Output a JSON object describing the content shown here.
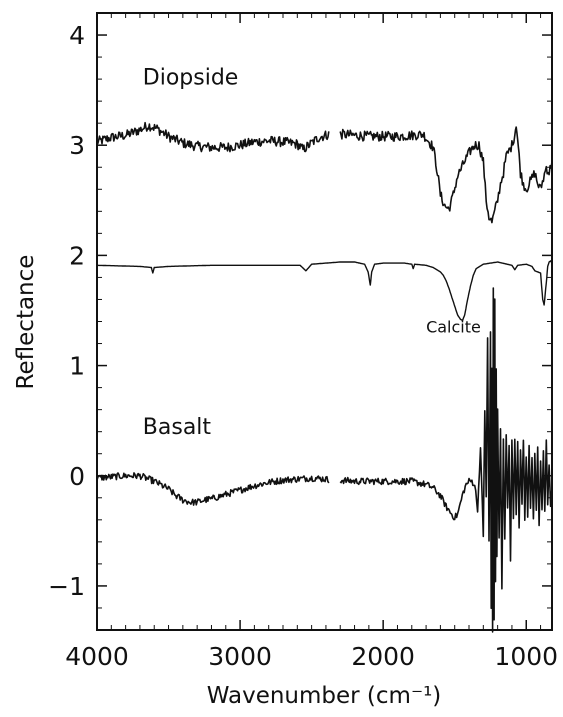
{
  "chart_data": {
    "type": "line",
    "title": "",
    "xlabel": "Wavenumber (cm⁻¹)",
    "ylabel": "Reflectance",
    "xlim": [
      4000,
      820
    ],
    "ylim": [
      -1.4,
      4.2
    ],
    "x_reversed": true,
    "grid": false,
    "x_ticks": [
      4000,
      3000,
      2000,
      1000
    ],
    "y_ticks": [
      -1,
      0,
      1,
      2,
      3,
      4
    ],
    "x_tick_labels": [
      "4000",
      "3000",
      "2000",
      "1000"
    ],
    "y_tick_labels": [
      "−1",
      "0",
      "1",
      "2",
      "3",
      "4"
    ],
    "gap": [
      2380,
      2300
    ],
    "series": [
      {
        "name": "Diopside",
        "noise": 0.045,
        "x": [
          4000,
          3900,
          3800,
          3700,
          3640,
          3580,
          3500,
          3400,
          3300,
          3200,
          3100,
          3000,
          2900,
          2800,
          2700,
          2600,
          2560,
          2520,
          2450,
          2380,
          2300,
          2200,
          2100,
          2000,
          1900,
          1800,
          1720,
          1690,
          1650,
          1620,
          1600,
          1570,
          1540,
          1510,
          1480,
          1450,
          1420,
          1390,
          1360,
          1330,
          1300,
          1280,
          1260,
          1240,
          1220,
          1200,
          1180,
          1160,
          1140,
          1120,
          1100,
          1080,
          1070,
          1060,
          1050,
          1040,
          1020,
          1000,
          980,
          960,
          940,
          920,
          900,
          880,
          860,
          840,
          820
        ],
        "values": [
          3.03,
          3.07,
          3.09,
          3.14,
          3.18,
          3.15,
          3.08,
          3.02,
          2.99,
          2.98,
          2.98,
          3.0,
          3.03,
          3.04,
          3.03,
          3.01,
          2.96,
          3.0,
          3.07,
          3.1,
          3.1,
          3.09,
          3.08,
          3.08,
          3.08,
          3.09,
          3.1,
          3.05,
          2.98,
          2.75,
          2.55,
          2.45,
          2.42,
          2.55,
          2.72,
          2.8,
          2.88,
          2.95,
          3.0,
          3.0,
          2.85,
          2.5,
          2.35,
          2.3,
          2.4,
          2.5,
          2.65,
          2.75,
          2.9,
          2.95,
          3.0,
          3.1,
          3.2,
          3.05,
          2.9,
          2.75,
          2.65,
          2.6,
          2.65,
          2.7,
          2.75,
          2.65,
          2.6,
          2.7,
          2.8,
          2.75,
          2.85
        ]
      },
      {
        "name": "Calcite",
        "noise": 0.0,
        "x": [
          4000,
          3700,
          3620,
          3610,
          3600,
          3500,
          3200,
          2900,
          2580,
          2540,
          2500,
          2400,
          2300,
          2200,
          2130,
          2105,
          2090,
          2080,
          2060,
          2000,
          1850,
          1800,
          1790,
          1780,
          1700,
          1650,
          1600,
          1580,
          1560,
          1540,
          1520,
          1500,
          1480,
          1460,
          1445,
          1430,
          1410,
          1390,
          1370,
          1350,
          1300,
          1200,
          1100,
          1080,
          1060,
          1000,
          960,
          940,
          900,
          885,
          875,
          860,
          850,
          840,
          830,
          820
        ],
        "values": [
          1.91,
          1.9,
          1.89,
          1.84,
          1.89,
          1.9,
          1.91,
          1.91,
          1.91,
          1.86,
          1.92,
          1.93,
          1.94,
          1.94,
          1.92,
          1.85,
          1.73,
          1.85,
          1.92,
          1.93,
          1.93,
          1.92,
          1.88,
          1.92,
          1.91,
          1.89,
          1.85,
          1.82,
          1.77,
          1.7,
          1.62,
          1.54,
          1.46,
          1.42,
          1.41,
          1.46,
          1.6,
          1.72,
          1.82,
          1.88,
          1.92,
          1.94,
          1.91,
          1.87,
          1.91,
          1.92,
          1.9,
          1.86,
          1.84,
          1.6,
          1.55,
          1.75,
          1.9,
          1.94,
          1.95,
          1.93
        ]
      },
      {
        "name": "Basalt",
        "noise": 0.03,
        "x": [
          4000,
          3900,
          3800,
          3700,
          3600,
          3500,
          3450,
          3400,
          3350,
          3300,
          3250,
          3200,
          3100,
          3000,
          2900,
          2800,
          2700,
          2600,
          2500,
          2400,
          2380,
          2300,
          2200,
          2100,
          2000,
          1900,
          1800,
          1700,
          1650,
          1600,
          1560,
          1520,
          1500,
          1480,
          1460,
          1440,
          1420,
          1400,
          1380,
          1360,
          1340,
          1320,
          1300,
          1290,
          1280,
          1270,
          1260,
          1250,
          1245,
          1240,
          1235,
          1230,
          1225,
          1220,
          1215,
          1210,
          1205,
          1200,
          1190,
          1180,
          1170,
          1160,
          1150,
          1140,
          1130,
          1120,
          1110,
          1100,
          1090,
          1080,
          1070,
          1060,
          1050,
          1040,
          1030,
          1020,
          1010,
          1000,
          990,
          980,
          970,
          960,
          950,
          940,
          930,
          920,
          910,
          900,
          890,
          880,
          870,
          860,
          850,
          840,
          830,
          820
        ],
        "values": [
          -0.02,
          -0.01,
          0.0,
          0.0,
          -0.05,
          -0.12,
          -0.18,
          -0.22,
          -0.24,
          -0.24,
          -0.22,
          -0.21,
          -0.17,
          -0.13,
          -0.09,
          -0.06,
          -0.04,
          -0.03,
          -0.02,
          -0.03,
          -0.04,
          -0.04,
          -0.05,
          -0.05,
          -0.05,
          -0.05,
          -0.05,
          -0.08,
          -0.11,
          -0.18,
          -0.28,
          -0.35,
          -0.38,
          -0.35,
          -0.25,
          -0.15,
          -0.08,
          -0.05,
          -0.05,
          -0.08,
          -0.3,
          0.25,
          -0.55,
          0.6,
          -0.2,
          1.25,
          -0.6,
          1.3,
          -1.2,
          0.95,
          -1.4,
          1.7,
          -1.3,
          1.6,
          -0.95,
          0.95,
          -0.75,
          0.6,
          -0.55,
          0.45,
          -1.05,
          0.35,
          -0.6,
          0.4,
          -0.3,
          0.25,
          -0.75,
          0.3,
          -0.4,
          0.35,
          -0.35,
          0.3,
          -0.45,
          0.25,
          -0.25,
          0.35,
          -0.4,
          0.2,
          -0.35,
          0.3,
          -0.3,
          0.15,
          -0.4,
          0.2,
          -0.3,
          0.25,
          -0.45,
          0.15,
          -0.3,
          0.2,
          -0.35,
          0.3,
          -0.25,
          0.1,
          -0.3,
          -0.1
        ]
      }
    ],
    "annotations": [
      {
        "text": "Diopside",
        "x": 3680,
        "y": 3.55
      },
      {
        "text": "Calcite",
        "x": 1700,
        "y": 1.3
      },
      {
        "text": "Basalt",
        "x": 3680,
        "y": 0.38
      }
    ]
  }
}
